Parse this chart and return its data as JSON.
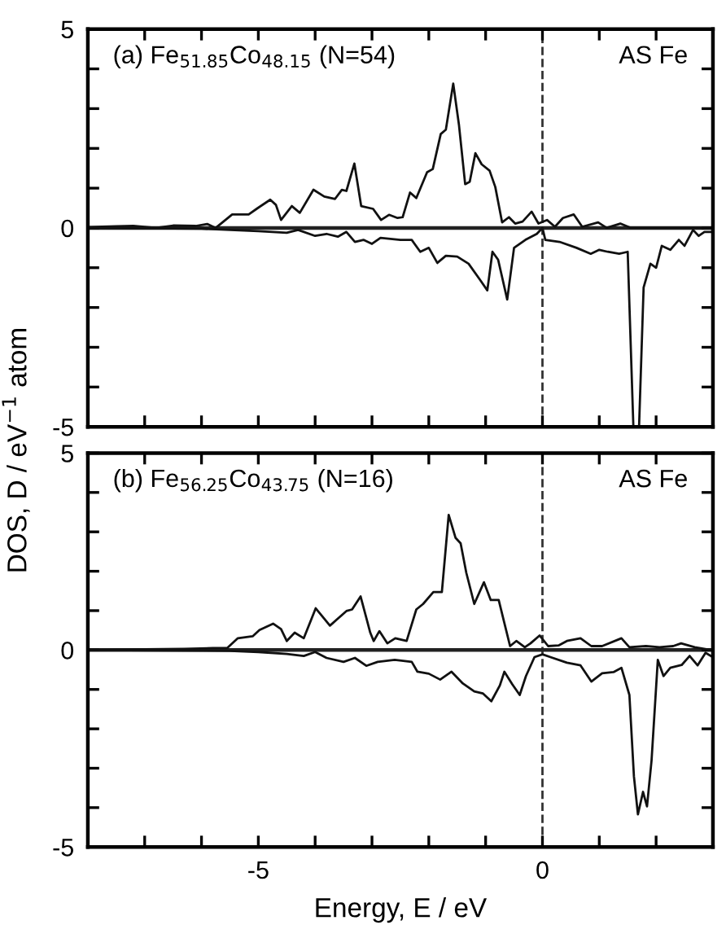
{
  "chart_data": [
    {
      "type": "line",
      "ylabel": "DOS, D / eV$^{−1}$ atom",
      "annotations": [
        "(a) Fe$_{51.85}$Co$_{48.15}$ (N=54)",
        "AS Fe"
      ],
      "xlim": [
        -8,
        3
      ],
      "ylim": [
        -5,
        5
      ],
      "xticks": [
        {
          "value": -8,
          "label": null
        },
        {
          "value": -7,
          "label": null
        },
        {
          "value": -6,
          "label": null
        },
        {
          "value": -5,
          "label": null
        },
        {
          "value": -4,
          "label": null
        },
        {
          "value": -3,
          "label": null
        },
        {
          "value": -2,
          "label": null
        },
        {
          "value": -1,
          "label": null
        },
        {
          "value": 0,
          "label": null
        },
        {
          "value": 1,
          "label": null
        },
        {
          "value": 2,
          "label": null
        },
        {
          "value": 3,
          "label": null
        }
      ],
      "yticks": [
        -5,
        {
          "value": -4,
          "label": null
        },
        {
          "value": -3,
          "label": null
        },
        {
          "value": -2,
          "label": null
        },
        {
          "value": -1,
          "label": null
        },
        0,
        {
          "value": 1,
          "label": null
        },
        {
          "value": 2,
          "label": null
        },
        {
          "value": 3,
          "label": null
        },
        {
          "value": 4,
          "label": null
        },
        5
      ],
      "tick_labels": "y",
      "grid": false,
      "legend": false,
      "line_style": "solid",
      "marker": "none",
      "ref_lines": [
        {
          "axis": "x",
          "value": 0,
          "line_style": "dashed",
          "color": "#333333"
        },
        {
          "axis": "y",
          "value": 0,
          "line_style": "solid",
          "color": "#222222"
        }
      ],
      "series": [
        {
          "color": "#111111",
          "x": [
            -8,
            -7.5,
            -7.2,
            -6.8,
            -6.5,
            -6.1,
            -5.9,
            -5.75,
            -5.46,
            -5.17,
            -5.03,
            -4.79,
            -4.69,
            -4.6,
            -4.41,
            -4.27,
            -4.03,
            -3.84,
            -3.65,
            -3.53,
            -3.45,
            -3.31,
            -3.19,
            -2.98,
            -2.84,
            -2.7,
            -2.55,
            -2.46,
            -2.33,
            -2.22,
            -2.03,
            -1.93,
            -1.79,
            -1.7,
            -1.57,
            -1.47,
            -1.36,
            -1.28,
            -1.18,
            -1.07,
            -0.93,
            -0.83,
            -0.71,
            -0.59,
            -0.48,
            -0.35,
            -0.19,
            -0.07,
            0.08,
            0.22,
            0.36,
            0.55,
            0.7,
            0.98,
            1.13,
            1.37,
            1.56,
            2.94
          ],
          "values": [
            0.02,
            0.04,
            0.05,
            0.0,
            0.06,
            0.05,
            0.1,
            0.0,
            0.34,
            0.34,
            0.48,
            0.71,
            0.58,
            0.2,
            0.55,
            0.38,
            0.96,
            0.79,
            0.73,
            0.96,
            0.93,
            1.62,
            0.55,
            0.48,
            0.2,
            0.33,
            0.25,
            0.27,
            0.89,
            0.75,
            1.4,
            1.48,
            2.36,
            2.47,
            3.63,
            2.6,
            1.1,
            1.16,
            1.88,
            1.6,
            1.44,
            1.03,
            0.14,
            0.27,
            0.11,
            0.16,
            0.41,
            0.11,
            0.2,
            0.03,
            0.25,
            0.34,
            0.03,
            0.14,
            0.0,
            0.11,
            0.0,
            0.0
          ]
        },
        {
          "color": "#111111",
          "x": [
            -8,
            -6,
            -5,
            -4.5,
            -4.3,
            -4.0,
            -3.8,
            -3.6,
            -3.45,
            -3.3,
            -3.15,
            -3.0,
            -2.85,
            -2.5,
            -2.3,
            -2.15,
            -2.0,
            -1.85,
            -1.7,
            -1.5,
            -1.3,
            -1.1,
            -0.97,
            -0.88,
            -0.78,
            -0.62,
            -0.5,
            -0.3,
            -0.1,
            0,
            0.05,
            0.3,
            0.6,
            0.85,
            1.0,
            1.15,
            1.35,
            1.5,
            1.6,
            1.7,
            1.78,
            1.9,
            2.0,
            2.1,
            2.25,
            2.4,
            2.5,
            2.65,
            2.75,
            2.85,
            3.0
          ],
          "values": [
            0,
            -0.02,
            -0.08,
            -0.12,
            -0.05,
            -0.2,
            -0.15,
            -0.22,
            -0.1,
            -0.35,
            -0.3,
            -0.4,
            -0.25,
            -0.3,
            -0.3,
            -0.6,
            -0.5,
            -0.88,
            -0.7,
            -0.72,
            -0.9,
            -1.3,
            -1.57,
            -0.6,
            -0.8,
            -1.8,
            -0.5,
            -0.3,
            -0.15,
            0,
            -0.3,
            -0.35,
            -0.5,
            -0.65,
            -0.55,
            -0.6,
            -0.65,
            -0.6,
            -5,
            -5,
            -1.5,
            -0.9,
            -1.0,
            -0.45,
            -0.55,
            -0.3,
            -0.45,
            -0.05,
            -0.2,
            -0.1,
            -0.1
          ]
        }
      ]
    },
    {
      "type": "line",
      "xlabel": "Energy, E / eV",
      "annotations": [
        "(b) Fe$_{56.25}$Co$_{43.75}$ (N=16)",
        "AS Fe"
      ],
      "xlim": [
        -8,
        3
      ],
      "ylim": [
        -5,
        5
      ],
      "xticks": [
        {
          "value": -8,
          "label": null
        },
        {
          "value": -7,
          "label": null
        },
        {
          "value": -6,
          "label": null
        },
        -5,
        {
          "value": -4,
          "label": null
        },
        {
          "value": -3,
          "label": null
        },
        {
          "value": -2,
          "label": null
        },
        {
          "value": -1,
          "label": null
        },
        0,
        {
          "value": 1,
          "label": null
        },
        {
          "value": 2,
          "label": null
        },
        {
          "value": 3,
          "label": null
        }
      ],
      "yticks": [
        -5,
        {
          "value": -4,
          "label": null
        },
        {
          "value": -3,
          "label": null
        },
        {
          "value": -2,
          "label": null
        },
        {
          "value": -1,
          "label": null
        },
        0,
        {
          "value": 1,
          "label": null
        },
        {
          "value": 2,
          "label": null
        },
        {
          "value": 3,
          "label": null
        },
        {
          "value": 4,
          "label": null
        },
        5
      ],
      "grid": false,
      "legend": false,
      "line_style": "solid",
      "marker": "none",
      "ref_lines": [
        {
          "axis": "x",
          "value": 0,
          "line_style": "dashed",
          "color": "#333333"
        },
        {
          "axis": "y",
          "value": 0,
          "line_style": "solid",
          "color": "#222222"
        }
      ],
      "series": [
        {
          "color": "#111111",
          "x": [
            -8,
            -7,
            -6.3,
            -5.8,
            -5.55,
            -5.36,
            -5.1,
            -4.98,
            -4.74,
            -4.6,
            -4.5,
            -4.36,
            -4.2,
            -3.99,
            -3.74,
            -3.45,
            -3.35,
            -3.2,
            -3.03,
            -2.97,
            -2.87,
            -2.73,
            -2.59,
            -2.39,
            -2.22,
            -2.1,
            -1.92,
            -1.77,
            -1.65,
            -1.53,
            -1.44,
            -1.34,
            -1.2,
            -1.03,
            -0.91,
            -0.77,
            -0.57,
            -0.46,
            -0.31,
            -0.21,
            -0.05,
            0.1,
            0.29,
            0.43,
            0.67,
            0.86,
            1.05,
            1.39,
            1.53,
            1.82,
            2.06,
            2.3,
            2.44,
            2.68,
            2.97
          ],
          "values": [
            0,
            0.02,
            0.03,
            0.05,
            0.05,
            0.3,
            0.35,
            0.51,
            0.67,
            0.53,
            0.23,
            0.44,
            0.3,
            1.06,
            0.62,
            0.99,
            1.03,
            1.36,
            0.44,
            0.23,
            0.48,
            0.17,
            0.3,
            0.23,
            1.03,
            1.17,
            1.47,
            1.47,
            3.43,
            2.85,
            2.71,
            1.96,
            1.17,
            1.72,
            1.27,
            1.27,
            0.1,
            0.23,
            0.07,
            0.17,
            0.37,
            0.1,
            0.12,
            0.23,
            0.3,
            0.1,
            0.1,
            0.3,
            0.07,
            0.1,
            0.07,
            0.1,
            0.17,
            0.07,
            0
          ]
        },
        {
          "color": "#111111",
          "x": [
            -8,
            -5.5,
            -5,
            -4.5,
            -4.2,
            -4,
            -3.8,
            -3.5,
            -3.3,
            -3.1,
            -2.9,
            -2.6,
            -2.3,
            -2.2,
            -2.0,
            -1.8,
            -1.6,
            -1.4,
            -1.2,
            -1.05,
            -0.9,
            -0.75,
            -0.67,
            -0.53,
            -0.4,
            -0.29,
            -0.14,
            0,
            0.14,
            0.43,
            0.67,
            0.86,
            1.05,
            1.25,
            1.39,
            1.53,
            1.61,
            1.68,
            1.77,
            1.84,
            1.92,
            2.03,
            2.13,
            2.25,
            2.45,
            2.59,
            2.73,
            2.87,
            3.0
          ],
          "values": [
            0,
            -0.02,
            -0.05,
            -0.1,
            -0.15,
            -0.05,
            -0.2,
            -0.3,
            -0.2,
            -0.4,
            -0.3,
            -0.25,
            -0.3,
            -0.55,
            -0.6,
            -0.75,
            -0.55,
            -0.85,
            -1.05,
            -1.1,
            -1.3,
            -0.9,
            -0.55,
            -0.87,
            -1.14,
            -0.66,
            -0.18,
            -0.11,
            -0.18,
            -0.32,
            -0.39,
            -0.8,
            -0.59,
            -0.56,
            -0.45,
            -1.14,
            -3.21,
            -4.17,
            -3.6,
            -3.97,
            -2.8,
            -0.25,
            -0.66,
            -0.45,
            -0.38,
            -0.15,
            -0.39,
            -0.07,
            -0.18
          ]
        }
      ]
    }
  ]
}
